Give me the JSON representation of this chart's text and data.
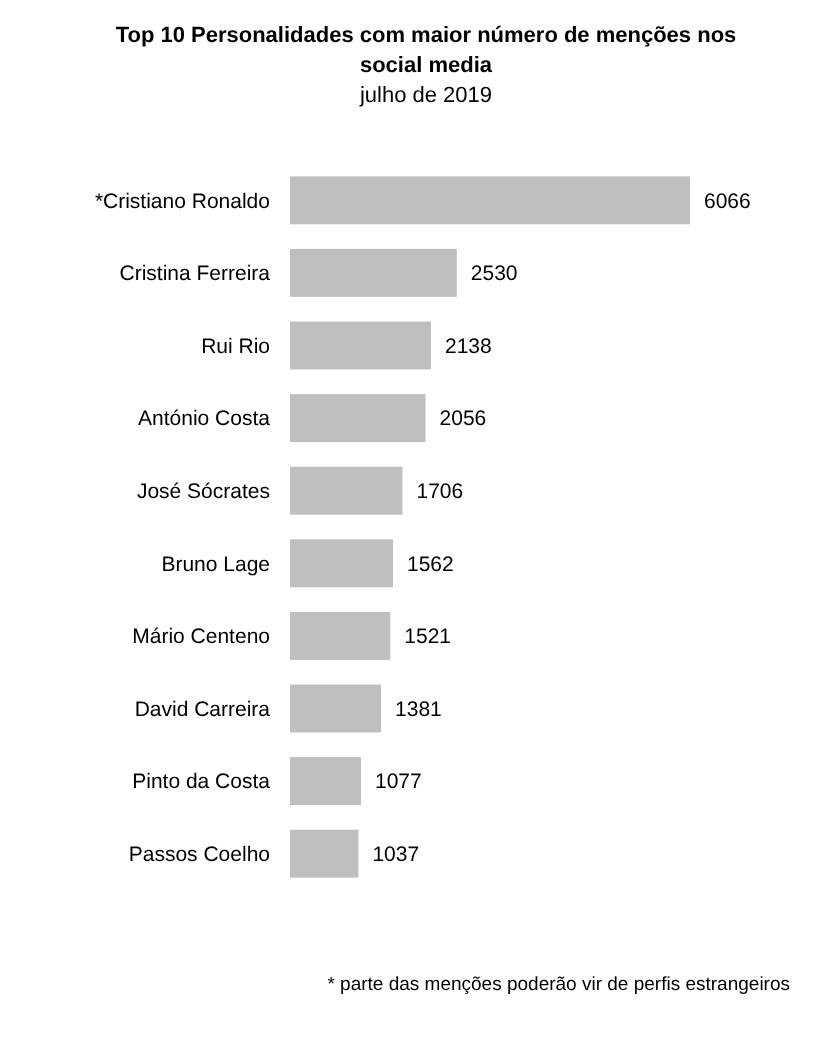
{
  "chart_data": {
    "type": "bar",
    "orientation": "horizontal",
    "title": "Top 10 Personalidades com maior número de menções nos social media",
    "subtitle": "julho de 2019",
    "categories": [
      "*Cristiano Ronaldo",
      "Cristina Ferreira",
      "Rui Rio",
      "António Costa",
      "José Sócrates",
      "Bruno Lage",
      "Mário Centeno",
      "David Carreira",
      "Pinto da Costa",
      "Passos Coelho"
    ],
    "values": [
      6066,
      2530,
      2138,
      2056,
      1706,
      1562,
      1521,
      1381,
      1077,
      1037
    ],
    "color": "#bfbfbf",
    "data_labels": true,
    "annotations": [
      "*  parte das menções poderão vir de perfis estrangeiros"
    ]
  }
}
